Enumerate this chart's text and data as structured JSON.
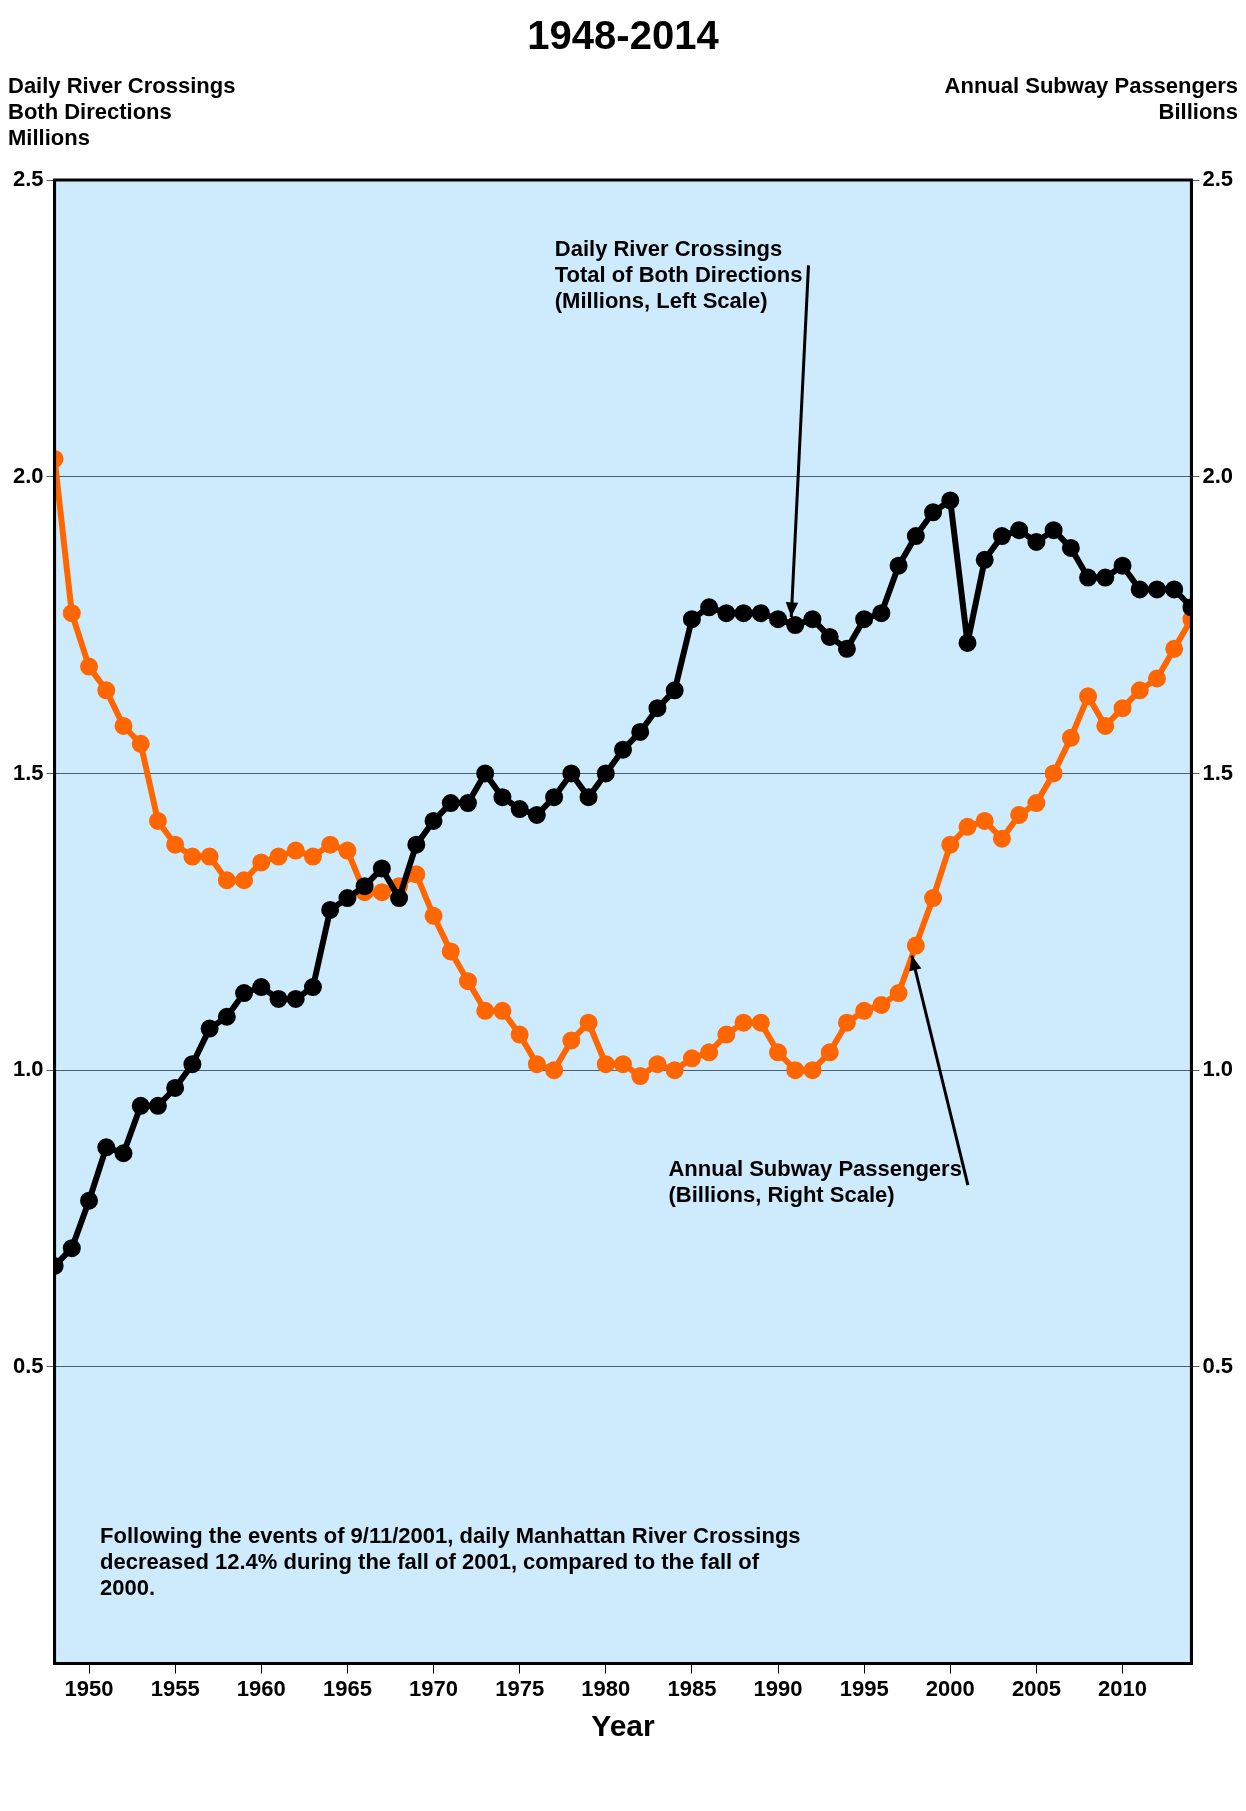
{
  "chart_data": {
    "type": "line",
    "title": "1948-2014",
    "xlabel": "Year",
    "ylabel": "Daily River Crossings\nBoth Directions\nMillions",
    "y2label": "Annual Subway Passengers\nBillions",
    "x": [
      1948,
      1949,
      1950,
      1951,
      1952,
      1953,
      1954,
      1955,
      1956,
      1957,
      1958,
      1959,
      1960,
      1961,
      1962,
      1963,
      1964,
      1965,
      1966,
      1967,
      1968,
      1969,
      1970,
      1971,
      1972,
      1973,
      1974,
      1975,
      1976,
      1977,
      1978,
      1979,
      1980,
      1981,
      1982,
      1983,
      1984,
      1985,
      1986,
      1987,
      1988,
      1989,
      1990,
      1991,
      1992,
      1993,
      1994,
      1995,
      1996,
      1997,
      1998,
      1999,
      2000,
      2001,
      2002,
      2003,
      2004,
      2005,
      2006,
      2007,
      2008,
      2009,
      2010,
      2011,
      2012,
      2013,
      2014
    ],
    "series": [
      {
        "name": "Daily River Crossings\nTotal of Both Directions\n(Millions, Left Scale)",
        "color": "#000000",
        "values": [
          0.67,
          0.7,
          0.78,
          0.87,
          0.86,
          0.94,
          0.94,
          0.97,
          1.01,
          1.07,
          1.09,
          1.13,
          1.14,
          1.12,
          1.12,
          1.14,
          1.27,
          1.29,
          1.31,
          1.34,
          1.29,
          1.38,
          1.42,
          1.45,
          1.45,
          1.5,
          1.46,
          1.44,
          1.43,
          1.46,
          1.5,
          1.46,
          1.5,
          1.54,
          1.57,
          1.61,
          1.64,
          1.76,
          1.78,
          1.77,
          1.77,
          1.77,
          1.76,
          1.75,
          1.76,
          1.73,
          1.71,
          1.76,
          1.77,
          1.85,
          1.9,
          1.94,
          1.96,
          1.72,
          1.86,
          1.9,
          1.91,
          1.89,
          1.91,
          1.88,
          1.83,
          1.83,
          1.85,
          1.81,
          1.81,
          1.81,
          1.78
        ]
      },
      {
        "name": "Annual Subway Passengers\n(Billions, Right Scale)",
        "color": "#ff6600",
        "axis": "y2",
        "values": [
          2.03,
          1.77,
          1.68,
          1.64,
          1.58,
          1.55,
          1.42,
          1.38,
          1.36,
          1.36,
          1.32,
          1.32,
          1.35,
          1.36,
          1.37,
          1.36,
          1.38,
          1.37,
          1.3,
          1.3,
          1.31,
          1.33,
          1.26,
          1.2,
          1.15,
          1.1,
          1.1,
          1.06,
          1.01,
          1.0,
          1.05,
          1.08,
          1.01,
          1.01,
          0.99,
          1.01,
          1.0,
          1.02,
          1.03,
          1.06,
          1.08,
          1.08,
          1.03,
          1.0,
          1.0,
          1.03,
          1.08,
          1.1,
          1.11,
          1.13,
          1.21,
          1.29,
          1.38,
          1.41,
          1.42,
          1.39,
          1.43,
          1.45,
          1.5,
          1.56,
          1.63,
          1.58,
          1.61,
          1.64,
          1.66,
          1.71,
          1.76
        ]
      }
    ],
    "xlim": [
      1948,
      2014
    ],
    "xticks": [
      1950,
      1955,
      1960,
      1965,
      1970,
      1975,
      1980,
      1985,
      1990,
      1995,
      2000,
      2005,
      2010
    ],
    "ylim": [
      0,
      2.5
    ],
    "yticks": [
      {
        "value": 0.5,
        "label": "0.5"
      },
      {
        "value": 1,
        "label": "1.0"
      },
      {
        "value": 1.5,
        "label": "1.5"
      },
      {
        "value": 2,
        "label": "2.0"
      },
      {
        "value": 2.5,
        "label": "2.5"
      }
    ],
    "y2lim": [
      0,
      2.5
    ],
    "y2ticks": [
      {
        "value": 0.5,
        "label": "0.5"
      },
      {
        "value": 1,
        "label": "1.0"
      },
      {
        "value": 1.5,
        "label": "1.5"
      },
      {
        "value": 2,
        "label": "2.0"
      },
      {
        "value": 2.5,
        "label": "2.5"
      }
    ],
    "annotations": [
      "Following the events of 9/11/2001, daily Manhattan River Crossings decreased 12.4% during the fall of 2001, compared to the fall of 2000."
    ],
    "grid": "y",
    "marker": "circle",
    "line_style": "solid",
    "legend": false
  }
}
